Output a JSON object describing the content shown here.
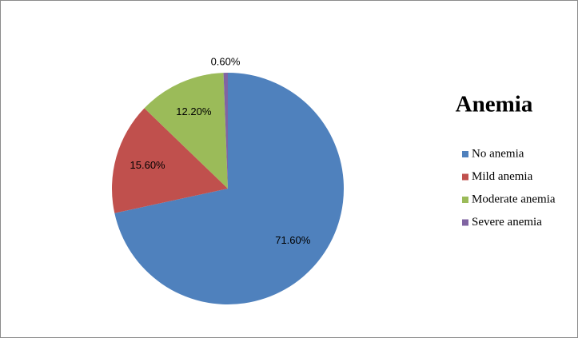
{
  "chart_data": {
    "type": "pie",
    "title": "Anemia",
    "categories": [
      "No anemia",
      "Mild anemia",
      "Moderate anemia",
      "Severe anemia"
    ],
    "values": [
      71.6,
      15.6,
      12.2,
      0.6
    ],
    "value_labels": [
      "71.60%",
      "15.60%",
      "12.20%",
      "0.60%"
    ],
    "colors": [
      "#4f81bd",
      "#c0504d",
      "#9bbb59",
      "#8064a2"
    ],
    "legend": "right"
  }
}
